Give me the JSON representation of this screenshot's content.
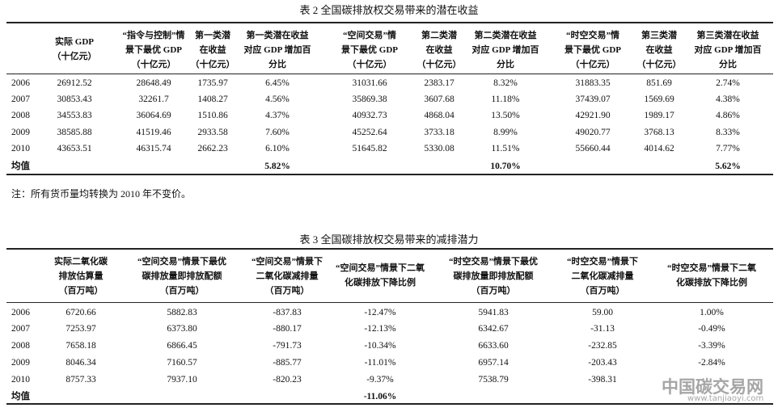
{
  "table2": {
    "title": "表 2  全国碳排放权交易带来的潜在收益",
    "headers": [
      [
        "实际 GDP",
        "（十亿元）"
      ],
      [
        "“指令与控制”情",
        "景下最优 GDP",
        "（十亿元）"
      ],
      [
        "第一类潜",
        "在收益",
        "（十亿元）"
      ],
      [
        "第一类潜在收益",
        "对应 GDP 增加百",
        "分比"
      ],
      [
        "“空间交易”情",
        "景下最优 GDP",
        "（十亿元）"
      ],
      [
        "第二类潜",
        "在收益",
        "（十亿元）"
      ],
      [
        "第二类潜在收益",
        "对应 GDP 增加百",
        "分比"
      ],
      [
        "“时空交易”情",
        "景下最优 GDP",
        "（十亿元）"
      ],
      [
        "第三类潜",
        "在收益",
        "（十亿元）"
      ],
      [
        "第三类潜在收益",
        "对应 GDP 增加百",
        "分比"
      ]
    ],
    "rows": [
      [
        "2006",
        "26912.52",
        "28648.49",
        "1735.97",
        "6.45%",
        "31031.66",
        "2383.17",
        "8.32%",
        "31883.35",
        "851.69",
        "2.74%"
      ],
      [
        "2007",
        "30853.43",
        "32261.7",
        "1408.27",
        "4.56%",
        "35869.38",
        "3607.68",
        "11.18%",
        "37439.07",
        "1569.69",
        "4.38%"
      ],
      [
        "2008",
        "34553.83",
        "36064.69",
        "1510.86",
        "4.37%",
        "40932.73",
        "4868.04",
        "13.50%",
        "42921.90",
        "1989.17",
        "4.86%"
      ],
      [
        "2009",
        "38585.88",
        "41519.46",
        "2933.58",
        "7.60%",
        "45252.64",
        "3733.18",
        "8.99%",
        "49020.77",
        "3768.13",
        "8.33%"
      ],
      [
        "2010",
        "43653.51",
        "46315.74",
        "2662.23",
        "6.10%",
        "51645.82",
        "5330.08",
        "11.51%",
        "55660.44",
        "4014.62",
        "7.77%"
      ]
    ],
    "mean_row": [
      "均值",
      null,
      null,
      null,
      "5.82%",
      null,
      null,
      "10.70%",
      null,
      null,
      "5.62%"
    ],
    "note": "注：所有货币量均转换为 2010 年不变价。"
  },
  "table3": {
    "title": "表 3  全国碳排放权交易带来的减排潜力",
    "headers": [
      [
        "实际二氧化碳",
        "排放估算量",
        "（百万吨）"
      ],
      [
        "“空间交易”情景下最优",
        "碳排放量即排放配额",
        "（百万吨）"
      ],
      [
        "“空间交易”情景下",
        "二氧化碳减排量",
        "（百万吨）"
      ],
      [
        "“空间交易”情景下二氧",
        "化碳排放下降比例"
      ],
      [
        "“时空交易”情景下最优",
        "碳排放量即排放配额",
        "（百万吨）"
      ],
      [
        "“时空交易”情景下",
        "二氧化碳减排量",
        "（百万吨）"
      ],
      [
        "“时空交易”情景下二氧",
        "化碳排放下降比例"
      ]
    ],
    "rows": [
      [
        "2006",
        "6720.66",
        "5882.83",
        "-837.83",
        "-12.47%",
        "5941.83",
        "59.00",
        "1.00%"
      ],
      [
        "2007",
        "7253.97",
        "6373.80",
        "-880.17",
        "-12.13%",
        "6342.67",
        "-31.13",
        "-0.49%"
      ],
      [
        "2008",
        "7658.18",
        "6866.45",
        "-791.73",
        "-10.34%",
        "6633.60",
        "-232.85",
        "-3.39%"
      ],
      [
        "2009",
        "8046.34",
        "7160.57",
        "-885.77",
        "-11.01%",
        "6957.14",
        "-203.43",
        "-2.84%"
      ],
      [
        "2010",
        "8757.33",
        "7937.10",
        "-820.23",
        "-9.37%",
        "7538.79",
        "-398.31",
        null
      ]
    ],
    "mean_row": [
      "均值",
      null,
      null,
      null,
      "-11.06%",
      null,
      null,
      null
    ]
  },
  "watermark": {
    "name": "中国碳交易网",
    "url": "www.tanjiaoyi.com"
  }
}
